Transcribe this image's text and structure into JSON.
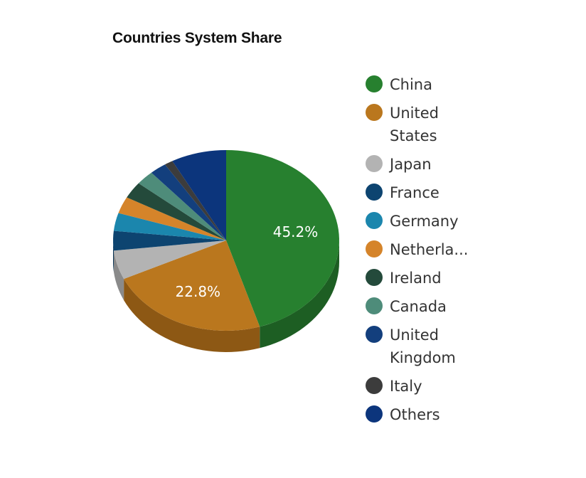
{
  "chart_data": {
    "type": "pie",
    "title": "Countries System Share",
    "categories": [
      "China",
      "United States",
      "Japan",
      "France",
      "Germany",
      "Netherla...",
      "Ireland",
      "Canada",
      "United Kingdom",
      "Italy",
      "Others"
    ],
    "values": [
      45.2,
      22.8,
      5.2,
      3.5,
      3.2,
      3.0,
      3.0,
      2.6,
      2.4,
      1.2,
      7.9
    ],
    "data_labels": [
      "45.2%",
      "22.8%",
      "",
      "",
      "",
      "",
      "",
      "",
      "",
      "",
      ""
    ],
    "colors": [
      "#27802f",
      "#ba771e",
      "#b3b3b3",
      "#0d4470",
      "#1b86ad",
      "#d5842a",
      "#244a3b",
      "#4e8c7a",
      "#133f7d",
      "#3c3c3c",
      "#0c357c"
    ],
    "side_colors": [
      "#1d5e23",
      "#8d5814",
      "#8a8a8a",
      "#093355",
      "#136582",
      "#a0631f",
      "#1a372c",
      "#3a695b",
      "#0e2f5e",
      "#2d2d2d",
      "#09285d"
    ],
    "legend_position": "right",
    "grid": false
  }
}
